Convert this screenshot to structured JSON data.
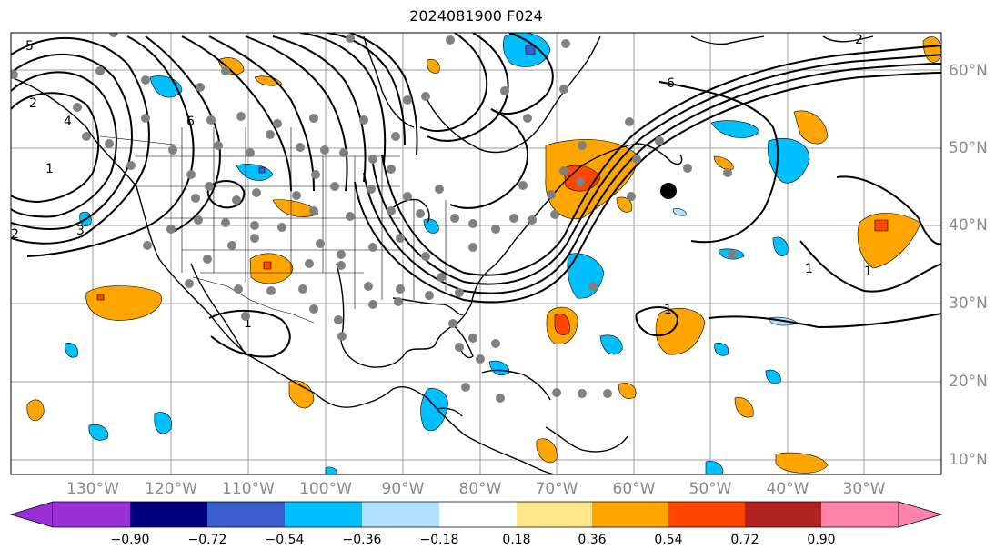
{
  "title": "2024081900 F024",
  "longitude_labels": [
    "130°W",
    "120°W",
    "110°W",
    "100°W",
    "90°W",
    "80°W",
    "70°W",
    "60°W",
    "50°W",
    "40°W",
    "30°W"
  ],
  "latitude_labels": [
    "60°N",
    "50°N",
    "40°N",
    "30°N",
    "20°N",
    "10°N"
  ],
  "colorbar": {
    "tick_labels": [
      "−0.90",
      "−0.72",
      "−0.54",
      "−0.36",
      "−0.18",
      "0.18",
      "0.36",
      "0.54",
      "0.72",
      "0.90"
    ],
    "colors": [
      "#9b30d9",
      "#000080",
      "#3a5fcd",
      "#00bfff",
      "#b0e2ff",
      "#ffffff",
      "#ffe68a",
      "#ffa500",
      "#ff4500",
      "#b22222",
      "#ff82ab"
    ]
  },
  "contour_labels": [
    "1",
    "2",
    "3",
    "4",
    "5",
    "6",
    "6",
    "1",
    "1",
    "1",
    "2",
    "1",
    "2"
  ],
  "map_features": {
    "coastlines": "North America, Caribbean, Greenland",
    "marker": "black-dot-near-45N-55W",
    "stations": "grey dots over US and Caribbean"
  }
}
